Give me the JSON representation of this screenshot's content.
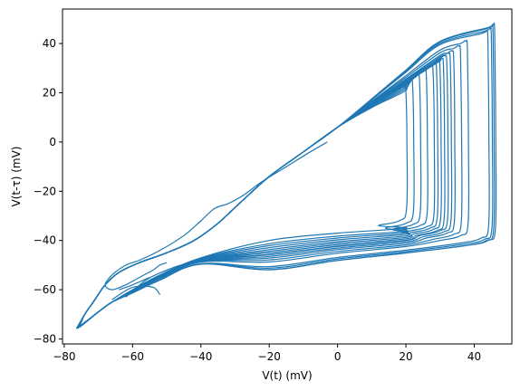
{
  "chart_data": {
    "type": "line",
    "title": "",
    "xlabel": "V(t) (mV)",
    "ylabel": "V(t-τ) (mV)",
    "xlim": [
      -80.5,
      51
    ],
    "ylim": [
      -82,
      54
    ],
    "xticks": [
      -80,
      -60,
      -40,
      -20,
      0,
      20,
      40
    ],
    "yticks": [
      -80,
      -60,
      -40,
      -20,
      0,
      20,
      40
    ],
    "xtick_labels": [
      "−80",
      "−60",
      "−40",
      "−20",
      "0",
      "20",
      "40"
    ],
    "ytick_labels": [
      "−80",
      "−60",
      "−40",
      "−20",
      "0",
      "20",
      "40"
    ],
    "grid": false,
    "legend": "none",
    "line_color": "#1f77b4",
    "series": [
      {
        "description_of_data": "phase-portrait limit-cycle trajectory (transient spiral)",
        "start": [
          -3,
          0
        ],
        "loops": [
          {
            "x": [
              -3,
              -10,
              -20,
              -30,
              -37,
              -45,
              -55,
              -62,
              -66,
              -68,
              -64,
              -58,
              -52,
              -45,
              -30,
              -10,
              5,
              15,
              18,
              18,
              16,
              8,
              -5,
              -20,
              -30,
              -40,
              -50,
              -60,
              -67,
              -70,
              -65
            ]
          },
          {
            "xmax": 20,
            "ytop": 24,
            "ybot": -33
          },
          {
            "xmax": 22,
            "ytop": 26,
            "ybot": -34
          },
          {
            "xmax": 24,
            "ytop": 28,
            "ybot": -34.5
          },
          {
            "xmax": 26,
            "ytop": 30,
            "ybot": -35
          },
          {
            "xmax": 28,
            "ytop": 31,
            "ybot": -35.5
          },
          {
            "xmax": 29,
            "ytop": 32,
            "ybot": -36
          },
          {
            "xmax": 30,
            "ytop": 33,
            "ybot": -36.5
          },
          {
            "xmax": 31,
            "ytop": 34,
            "ybot": -37
          },
          {
            "xmax": 32,
            "ytop": 35,
            "ybot": -37
          },
          {
            "xmax": 33,
            "ytop": 36,
            "ybot": -37.5
          },
          {
            "xmax": 34,
            "ytop": 37,
            "ybot": -38
          },
          {
            "xmax": 36,
            "ytop": 39,
            "ybot": -38.5
          },
          {
            "xmax": 38,
            "ytop": 41,
            "ybot": -39
          },
          {
            "xmax": 44,
            "ytop": 45,
            "ybot": -40
          },
          {
            "xmax": 45,
            "ytop": 46,
            "ybot": -40.5
          },
          {
            "xmax": 45.5,
            "ytop": 47,
            "ybot": -41
          },
          {
            "xmax": 46,
            "ytop": 47.5,
            "ybot": -41
          }
        ]
      }
    ]
  }
}
